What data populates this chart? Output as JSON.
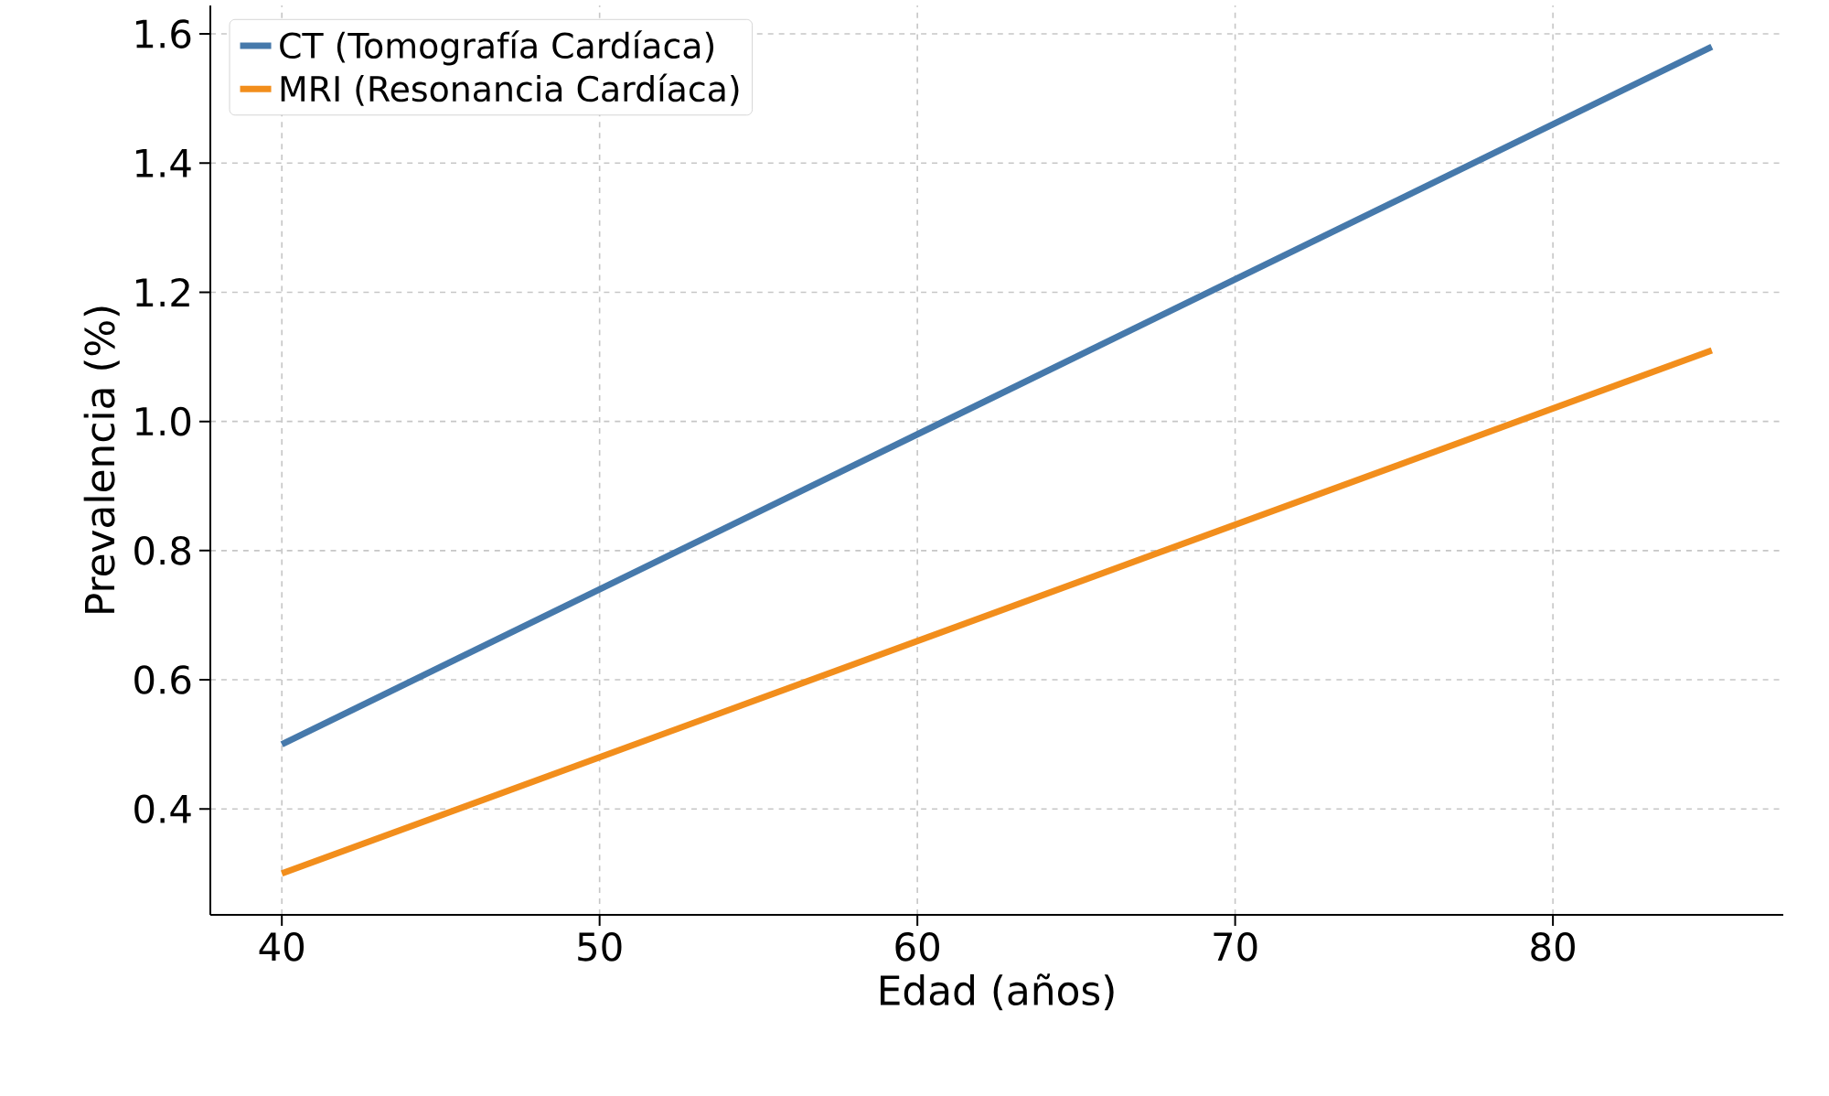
{
  "chart_data": {
    "type": "line",
    "xlabel": "Edad (años)",
    "ylabel": "Prevalencia (%)",
    "x": [
      40,
      85
    ],
    "series": [
      {
        "name": "CT (Tomografía Cardíaca)",
        "color": "#4679ab",
        "values": [
          0.5,
          1.58
        ]
      },
      {
        "name": "MRI (Resonancia Cardíaca)",
        "color": "#f28e1c",
        "values": [
          0.3,
          1.11
        ]
      }
    ],
    "xlim": [
      37.75,
      87.25
    ],
    "ylim": [
      0.236,
      1.644
    ],
    "xticks": [
      40,
      50,
      60,
      70,
      80
    ],
    "yticks": [
      0.4,
      0.6,
      0.8,
      {
        "value": 1.0,
        "label": "1.0"
      },
      1.2,
      1.4,
      1.6
    ],
    "grid": true,
    "legend": "top left",
    "marker": "none",
    "line_style": "solid"
  }
}
